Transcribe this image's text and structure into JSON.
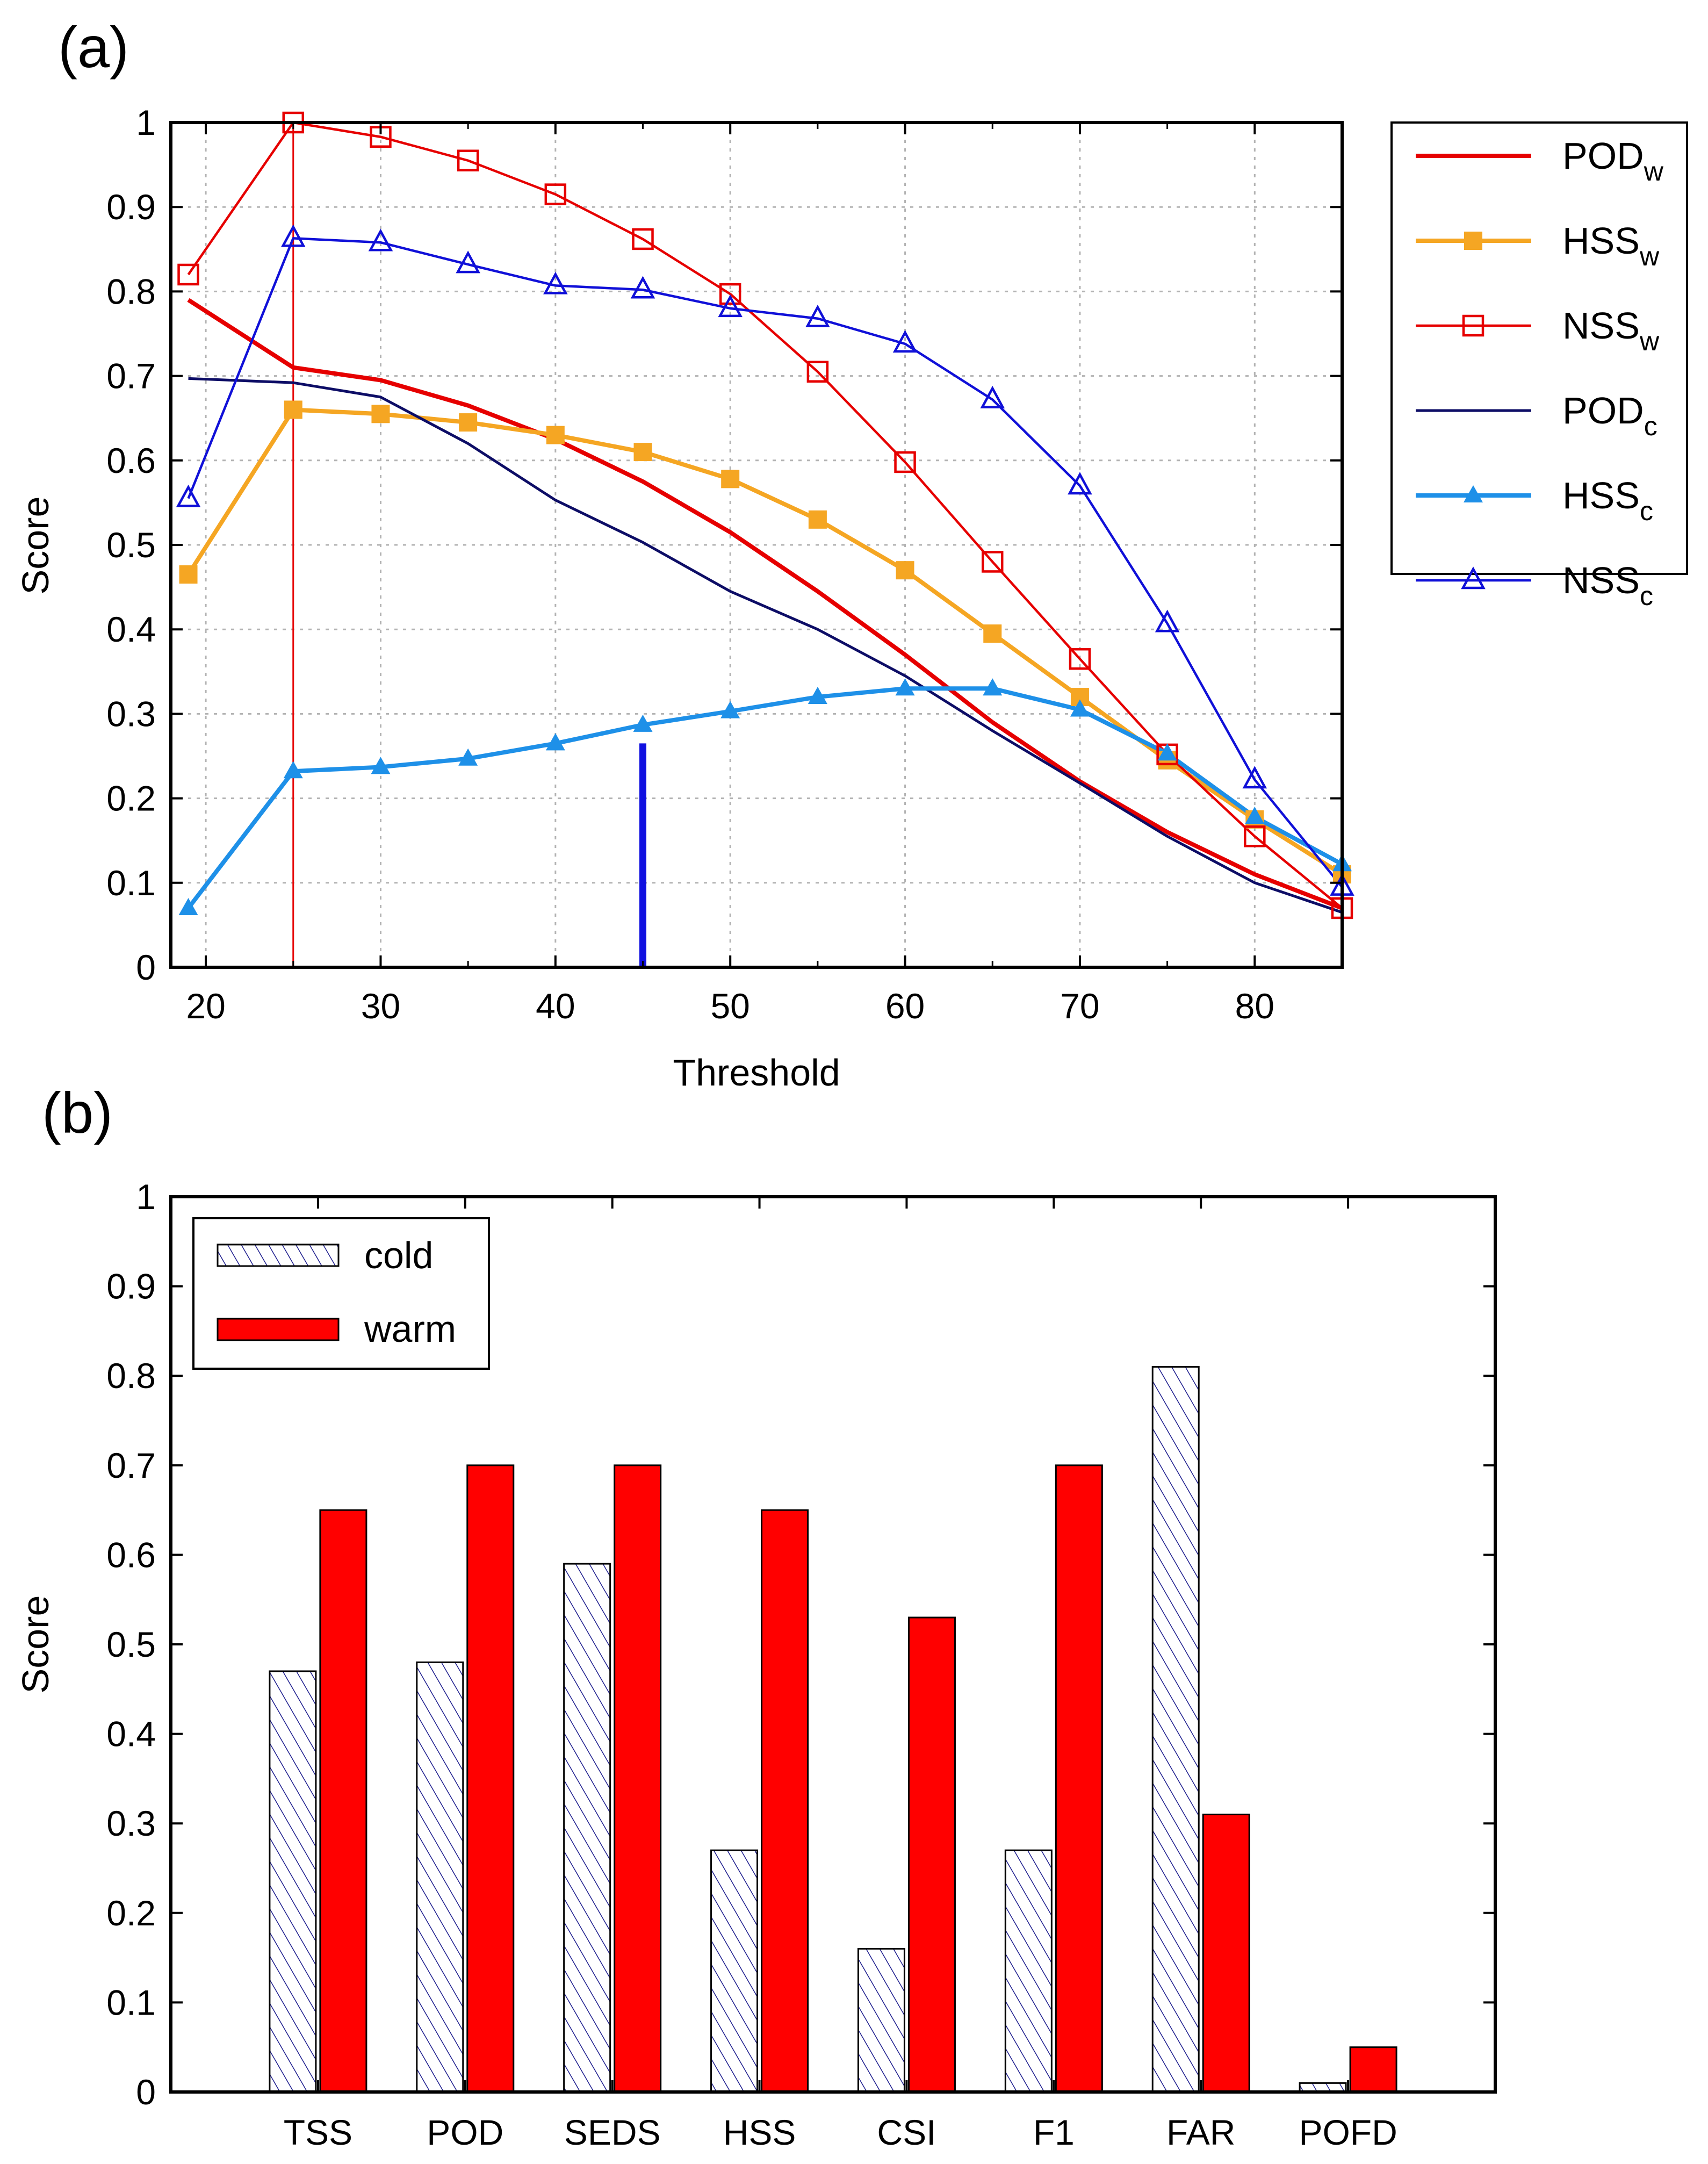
{
  "chart_data": [
    {
      "panel_label": "(a)",
      "type": "line",
      "xlabel": "Threshold",
      "ylabel": "Score",
      "xlim": [
        18,
        85
      ],
      "ylim": [
        0,
        1
      ],
      "xticks": [
        20,
        30,
        40,
        50,
        60,
        70,
        80
      ],
      "yticks": [
        0,
        0.1,
        0.2,
        0.3,
        0.4,
        0.5,
        0.6,
        0.7,
        0.8,
        0.9,
        1
      ],
      "ytick_labels": [
        "0",
        "0.1",
        "0.2",
        "0.3",
        "0.4",
        "0.5",
        "0.6",
        "0.7",
        "0.8",
        "0.9",
        "1"
      ],
      "grid": true,
      "legend_position": "right, outside plot",
      "series": [
        {
          "name": "POD",
          "subscript": "w",
          "color": "#e60000",
          "marker": "none",
          "x": [
            19,
            25,
            30,
            35,
            40,
            45,
            50,
            55,
            60,
            65,
            70,
            75,
            80,
            85
          ],
          "y": [
            0.79,
            0.71,
            0.695,
            0.665,
            0.625,
            0.575,
            0.515,
            0.445,
            0.37,
            0.29,
            0.22,
            0.16,
            0.11,
            0.07
          ]
        },
        {
          "name": "HSS",
          "subscript": "w",
          "color": "#f5a623",
          "marker": "filled-square",
          "x": [
            19,
            25,
            30,
            35,
            40,
            45,
            50,
            55,
            60,
            65,
            70,
            75,
            80,
            85
          ],
          "y": [
            0.465,
            0.66,
            0.655,
            0.645,
            0.63,
            0.61,
            0.578,
            0.53,
            0.47,
            0.395,
            0.32,
            0.245,
            0.175,
            0.11
          ]
        },
        {
          "name": "NSS",
          "subscript": "w",
          "color": "#e60000",
          "marker": "open-square",
          "x": [
            19,
            25,
            30,
            35,
            40,
            45,
            50,
            55,
            60,
            65,
            70,
            75,
            80,
            85
          ],
          "y": [
            0.82,
            1.0,
            0.983,
            0.955,
            0.915,
            0.862,
            0.797,
            0.705,
            0.598,
            0.48,
            0.365,
            0.252,
            0.155,
            0.07
          ]
        },
        {
          "name": "POD",
          "subscript": "c",
          "color": "#0d0d66",
          "marker": "none",
          "x": [
            19,
            25,
            30,
            35,
            40,
            45,
            50,
            55,
            60,
            65,
            70,
            75,
            80,
            85
          ],
          "y": [
            0.697,
            0.692,
            0.675,
            0.62,
            0.553,
            0.503,
            0.445,
            0.4,
            0.345,
            0.28,
            0.218,
            0.155,
            0.1,
            0.065
          ]
        },
        {
          "name": "HSS",
          "subscript": "c",
          "color": "#1e90e8",
          "marker": "filled-triangle",
          "x": [
            19,
            25,
            30,
            35,
            40,
            45,
            50,
            55,
            60,
            65,
            70,
            75,
            80,
            85
          ],
          "y": [
            0.07,
            0.232,
            0.237,
            0.247,
            0.265,
            0.287,
            0.303,
            0.32,
            0.33,
            0.33,
            0.305,
            0.253,
            0.178,
            0.122
          ]
        },
        {
          "name": "NSS",
          "subscript": "c",
          "color": "#1010d8",
          "marker": "open-triangle",
          "x": [
            19,
            25,
            30,
            35,
            40,
            45,
            50,
            55,
            60,
            65,
            70,
            75,
            80,
            85
          ],
          "y": [
            0.555,
            0.863,
            0.858,
            0.832,
            0.807,
            0.802,
            0.78,
            0.768,
            0.738,
            0.672,
            0.57,
            0.407,
            0.222,
            0.095
          ]
        }
      ],
      "vertical_markers": [
        {
          "x": 25,
          "y_top": 1.0,
          "color": "#e60000",
          "style": "thin"
        },
        {
          "x": 45,
          "y_top": 0.265,
          "color": "#1010e0",
          "style": "thick"
        }
      ]
    },
    {
      "panel_label": "(b)",
      "type": "bar",
      "ylabel": "Score",
      "ylim": [
        0,
        1
      ],
      "yticks": [
        0,
        0.1,
        0.2,
        0.3,
        0.4,
        0.5,
        0.6,
        0.7,
        0.8,
        0.9,
        1
      ],
      "ytick_labels": [
        "0",
        "0.1",
        "0.2",
        "0.3",
        "0.4",
        "0.5",
        "0.6",
        "0.7",
        "0.8",
        "0.9",
        "1"
      ],
      "grid": false,
      "legend_position": "top-left",
      "categories": [
        "TSS",
        "POD",
        "SEDS",
        "HSS",
        "CSI",
        "F1",
        "FAR",
        "POFD"
      ],
      "series": [
        {
          "name": "cold",
          "fill": "hatched",
          "color": "#1a1a8c",
          "values": [
            0.47,
            0.48,
            0.59,
            0.27,
            0.16,
            0.27,
            0.81,
            0.01
          ]
        },
        {
          "name": "warm",
          "fill": "solid",
          "color": "#ff0000",
          "values": [
            0.65,
            0.7,
            0.7,
            0.65,
            0.53,
            0.7,
            0.31,
            0.05
          ]
        }
      ]
    }
  ]
}
